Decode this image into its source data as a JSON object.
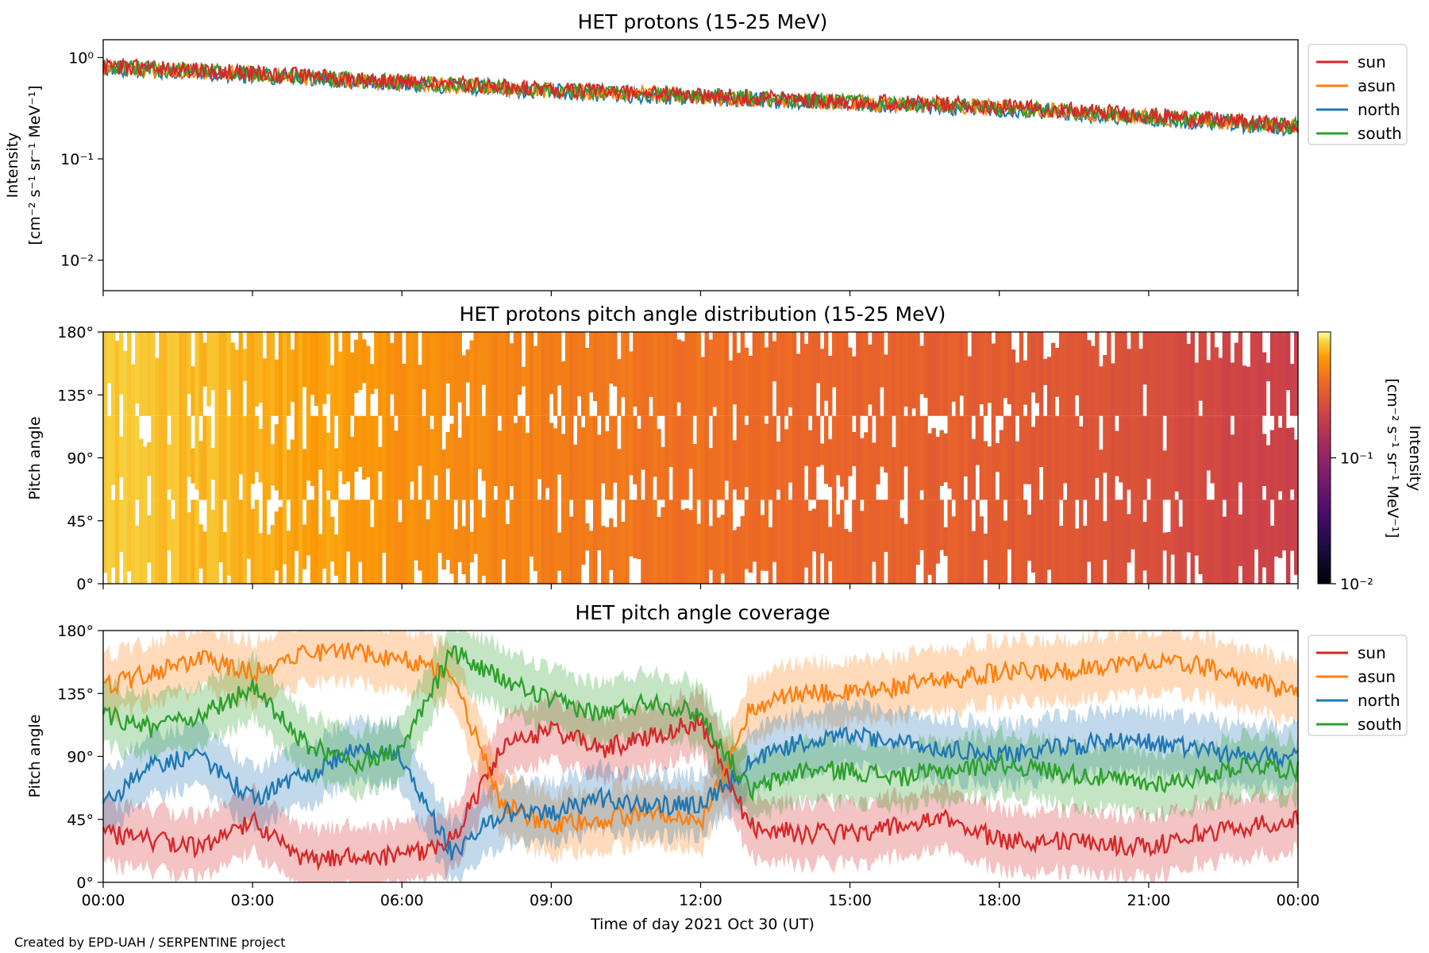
{
  "footer": "Created by EPD-UAH / SERPENTINE project",
  "xlabel": "Time of day 2021 Oct 30 (UT)",
  "xticks": [
    "00:00",
    "03:00",
    "06:00",
    "09:00",
    "12:00",
    "15:00",
    "18:00",
    "21:00",
    "00:00"
  ],
  "colors": {
    "sun": "#d62728",
    "asun": "#ff7f0e",
    "north": "#1f77b4",
    "south": "#2ca02c"
  },
  "chart_data": [
    {
      "type": "line",
      "title": "HET protons (15-25 MeV)",
      "ylabel": "Intensity [cm^-2 s^-1 sr^-1 MeV^-1]",
      "ylabel_line1": "Intensity",
      "ylabel_line2": "[cm⁻² s⁻¹ sr⁻¹ MeV⁻¹]",
      "yscale": "log",
      "ylim": [
        0.005,
        1.5
      ],
      "yticks": [
        "10⁰",
        "10⁻¹",
        "10⁻²"
      ],
      "ytick_values": [
        1,
        0.1,
        0.01
      ],
      "xlim_hours": [
        0,
        24
      ],
      "legend": [
        "sun",
        "asun",
        "north",
        "south"
      ],
      "legend_position": "outside right",
      "x_hours": [
        0,
        3,
        6,
        9,
        12,
        15,
        18,
        21,
        24
      ],
      "series": [
        {
          "name": "sun",
          "values": [
            0.82,
            0.7,
            0.58,
            0.48,
            0.42,
            0.37,
            0.33,
            0.27,
            0.21
          ]
        },
        {
          "name": "asun",
          "values": [
            0.8,
            0.68,
            0.56,
            0.47,
            0.41,
            0.36,
            0.32,
            0.26,
            0.2
          ]
        },
        {
          "name": "north",
          "values": [
            0.79,
            0.67,
            0.55,
            0.46,
            0.4,
            0.35,
            0.31,
            0.25,
            0.2
          ]
        },
        {
          "name": "south",
          "values": [
            0.81,
            0.69,
            0.57,
            0.48,
            0.42,
            0.36,
            0.32,
            0.26,
            0.21
          ]
        }
      ]
    },
    {
      "type": "heatmap",
      "title": "HET protons pitch angle distribution (15-25 MeV)",
      "ylabel": "Pitch angle",
      "yticks": [
        "180°",
        "135°",
        "90°",
        "45°",
        "0°"
      ],
      "ytick_values": [
        180,
        135,
        90,
        45,
        0
      ],
      "ylim": [
        0,
        180
      ],
      "xlim_hours": [
        0,
        24
      ],
      "colormap": "inferno",
      "colorbar_label": "Intensity [cm^-2 s^-1 sr^-1 MeV^-1]",
      "colorbar_label_line1": "Intensity",
      "colorbar_label_line2": "[cm⁻² s⁻¹ sr⁻¹ MeV⁻¹]",
      "colorbar_scale": "log",
      "colorbar_range": [
        0.01,
        1
      ],
      "colorbar_ticks": [
        "10⁻¹",
        "10⁻²"
      ],
      "colorbar_tick_values": [
        0.1,
        0.01
      ],
      "x_hours": [
        0,
        3,
        6,
        9,
        12,
        15,
        18,
        21,
        24
      ],
      "intensity": [
        0.82,
        0.7,
        0.58,
        0.48,
        0.42,
        0.37,
        0.33,
        0.27,
        0.21
      ]
    },
    {
      "type": "line",
      "title": "HET pitch angle coverage",
      "ylabel": "Pitch angle",
      "yticks": [
        "180°",
        "135°",
        "90°",
        "45°",
        "0°"
      ],
      "ytick_values": [
        180,
        135,
        90,
        45,
        0
      ],
      "ylim": [
        0,
        180
      ],
      "xlim_hours": [
        0,
        24
      ],
      "legend": [
        "sun",
        "asun",
        "north",
        "south"
      ],
      "legend_position": "outside right",
      "shaded_range_halfwidth_deg": 22,
      "x_hours": [
        0,
        1,
        2,
        3,
        4,
        5,
        6,
        7,
        8,
        9,
        10,
        11,
        12,
        13,
        14,
        15,
        16,
        17,
        18,
        19,
        20,
        21,
        22,
        23,
        24
      ],
      "series": [
        {
          "name": "sun",
          "values": [
            35,
            30,
            25,
            45,
            15,
            20,
            18,
            30,
            95,
            110,
            95,
            105,
            115,
            40,
            35,
            35,
            40,
            45,
            30,
            30,
            28,
            25,
            35,
            40,
            45
          ]
        },
        {
          "name": "asun",
          "values": [
            140,
            150,
            160,
            150,
            165,
            165,
            160,
            150,
            55,
            40,
            45,
            50,
            40,
            125,
            135,
            135,
            140,
            145,
            150,
            150,
            155,
            158,
            155,
            145,
            135
          ]
        },
        {
          "name": "north",
          "values": [
            55,
            85,
            90,
            60,
            75,
            95,
            90,
            20,
            50,
            50,
            60,
            55,
            55,
            85,
            100,
            105,
            100,
            95,
            90,
            95,
            100,
            100,
            95,
            90,
            90
          ]
        },
        {
          "name": "south",
          "values": [
            120,
            110,
            120,
            140,
            100,
            85,
            95,
            165,
            145,
            130,
            120,
            130,
            120,
            65,
            80,
            80,
            75,
            80,
            85,
            80,
            75,
            70,
            75,
            85,
            80
          ]
        }
      ]
    }
  ]
}
